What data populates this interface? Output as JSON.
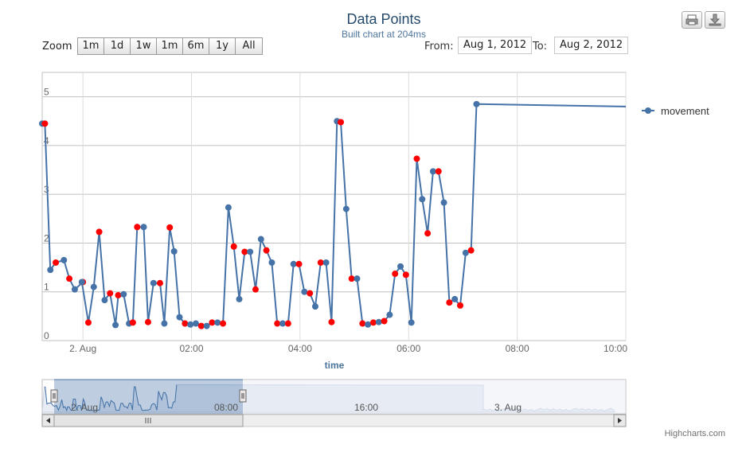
{
  "header": {
    "title": "Data Points",
    "subtitle": "Built chart at 204ms"
  },
  "zoom": {
    "label": "Zoom",
    "buttons": [
      "1m",
      "1d",
      "1w",
      "1m",
      "6m",
      "1y",
      "All"
    ]
  },
  "range": {
    "from_label": "From:",
    "from_value": "Aug 1, 2012",
    "to_label": "To:",
    "to_value": "Aug 2, 2012"
  },
  "export": {
    "print_icon": "printer-icon",
    "download_icon": "download-icon"
  },
  "credits": "Highcharts.com",
  "navigator": {
    "labels": [
      "2. Aug",
      "08:00",
      "16:00",
      "3. Aug"
    ]
  },
  "chart_data": {
    "type": "line",
    "title": "Data Points",
    "subtitle": "Built chart at 204ms",
    "xlabel": "time",
    "ylabel": "",
    "ylim": [
      0,
      5.5
    ],
    "x_ticks": [
      "2. Aug",
      "02:00",
      "04:00",
      "06:00",
      "08:00",
      "10:00"
    ],
    "y_ticks": [
      "0",
      "1",
      "2",
      "3",
      "4",
      "5"
    ],
    "xlim_hours": [
      -0.75,
      10
    ],
    "grid": true,
    "legend": "right",
    "series": [
      {
        "name": "movement",
        "color": "#4572A7",
        "highlight_color": "#FF0000",
        "x_hours": [
          -0.75,
          -0.7,
          -0.6,
          -0.5,
          -0.35,
          -0.25,
          -0.15,
          0.0,
          -0.02,
          0.1,
          0.2,
          0.3,
          0.4,
          0.5,
          0.6,
          0.65,
          0.75,
          0.85,
          0.92,
          1.0,
          1.12,
          1.2,
          1.3,
          1.42,
          1.5,
          1.6,
          1.68,
          1.78,
          1.88,
          1.98,
          2.08,
          2.18,
          2.28,
          2.38,
          2.48,
          2.58,
          2.68,
          2.78,
          2.88,
          2.98,
          3.08,
          3.18,
          3.28,
          3.38,
          3.48,
          3.58,
          3.68,
          3.78,
          3.88,
          3.98,
          4.08,
          4.18,
          4.28,
          4.38,
          4.48,
          4.58,
          4.68,
          4.75,
          4.85,
          4.95,
          5.05,
          5.15,
          5.25,
          5.35,
          5.45,
          5.55,
          5.65,
          5.75,
          5.85,
          5.95,
          6.05,
          6.15,
          6.25,
          6.35,
          6.45,
          6.55,
          6.65,
          6.75,
          6.85,
          6.95,
          7.05,
          7.15,
          7.25,
          10.0
        ],
        "y": [
          4.45,
          4.45,
          1.45,
          1.6,
          1.65,
          1.27,
          1.05,
          1.2,
          1.2,
          0.37,
          1.1,
          2.23,
          0.83,
          0.97,
          0.32,
          0.93,
          0.95,
          0.35,
          0.37,
          2.33,
          2.33,
          0.38,
          1.18,
          1.18,
          0.35,
          2.32,
          1.83,
          0.48,
          0.35,
          0.33,
          0.35,
          0.3,
          0.3,
          0.37,
          0.37,
          0.35,
          2.73,
          1.93,
          0.85,
          1.82,
          1.82,
          1.05,
          2.08,
          1.85,
          1.6,
          0.35,
          0.35,
          0.35,
          1.57,
          1.57,
          1.0,
          0.97,
          0.7,
          1.6,
          1.6,
          0.38,
          4.5,
          4.48,
          2.7,
          1.27,
          1.27,
          0.35,
          0.33,
          0.37,
          0.38,
          0.4,
          0.53,
          1.37,
          1.52,
          1.35,
          0.37,
          3.73,
          2.9,
          2.2,
          3.47,
          3.47,
          2.83,
          0.78,
          0.85,
          0.72,
          1.8,
          1.85,
          4.85,
          4.8
        ],
        "highlighted_indices": [
          1,
          3,
          5,
          7,
          9,
          11,
          13,
          15,
          18,
          19,
          21,
          23,
          25,
          28,
          31,
          33,
          35,
          37,
          39,
          41,
          43,
          45,
          47,
          49,
          51,
          53,
          55,
          57,
          59,
          61,
          63,
          65,
          67,
          69,
          71,
          73,
          75,
          77,
          79,
          81
        ]
      }
    ]
  }
}
